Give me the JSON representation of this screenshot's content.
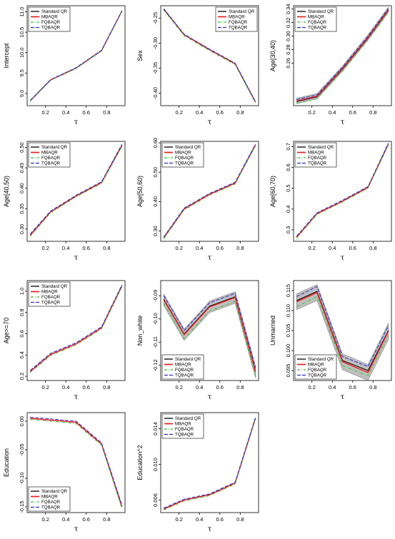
{
  "figure": {
    "colors": {
      "standard_qr": "#000000",
      "mbaqr": "#e8201f",
      "fqbaqr": "#35c035",
      "tqbaqr": "#2b2bd0",
      "band": "#aaaaaa"
    },
    "legend_labels": [
      "Standard QR",
      "MBAQR",
      "FQBAQR",
      "TQBAQR"
    ]
  },
  "chart_data": [
    {
      "type": "line",
      "ylabel": "Intercept",
      "xlabel": "τ",
      "x": [
        0.05,
        0.25,
        0.5,
        0.75,
        0.95
      ],
      "xticks": [
        "0.2",
        "0.4",
        "0.6",
        "0.8"
      ],
      "xlim": [
        0.02,
        0.98
      ],
      "yticks": [
        "9.0",
        "9.5",
        "10.0",
        "10.5",
        "11.0"
      ],
      "ylim": [
        8.7,
        11.15
      ],
      "legend": "top-left",
      "band": false,
      "series": [
        {
          "name": "Standard QR",
          "values": [
            8.82,
            9.33,
            9.62,
            10.05,
            11.02
          ]
        },
        {
          "name": "MBAQR",
          "values": [
            8.82,
            9.33,
            9.62,
            10.05,
            11.02
          ]
        },
        {
          "name": "FQBAQR",
          "values": [
            8.81,
            9.32,
            9.61,
            10.04,
            11.01
          ]
        },
        {
          "name": "TQBAQR",
          "values": [
            8.83,
            9.34,
            9.63,
            10.06,
            11.03
          ]
        }
      ]
    },
    {
      "type": "line",
      "ylabel": "Sex",
      "xlabel": "τ",
      "x": [
        0.05,
        0.25,
        0.5,
        0.75,
        0.95
      ],
      "xticks": [
        "0.2",
        "0.4",
        "0.6",
        "0.8"
      ],
      "xlim": [
        0.02,
        0.98
      ],
      "yticks": [
        "-0.25",
        "-0.30",
        "-0.35",
        "-0.40"
      ],
      "ylim": [
        -0.425,
        -0.225
      ],
      "legend": "top-right",
      "band": false,
      "series": [
        {
          "name": "Standard QR",
          "values": [
            -0.232,
            -0.283,
            -0.313,
            -0.341,
            -0.418
          ]
        },
        {
          "name": "MBAQR",
          "values": [
            -0.232,
            -0.283,
            -0.313,
            -0.341,
            -0.418
          ]
        },
        {
          "name": "FQBAQR",
          "values": [
            -0.234,
            -0.285,
            -0.315,
            -0.343,
            -0.42
          ]
        },
        {
          "name": "TQBAQR",
          "values": [
            -0.231,
            -0.282,
            -0.312,
            -0.34,
            -0.417
          ]
        }
      ]
    },
    {
      "type": "line",
      "ylabel": "Age[30,40)",
      "xlabel": "τ",
      "x": [
        0.05,
        0.25,
        0.5,
        0.75,
        0.95
      ],
      "xticks": [
        "0.2",
        "0.4",
        "0.6",
        "0.8"
      ],
      "xlim": [
        0.02,
        0.98
      ],
      "yticks": [
        "0.26",
        "0.28",
        "0.30",
        "0.32",
        "0.34"
      ],
      "ylim": [
        0.197,
        0.345
      ],
      "legend": "top-left",
      "band": true,
      "band_half_width": 0.004,
      "series": [
        {
          "name": "Standard QR",
          "values": [
            0.203,
            0.21,
            0.251,
            0.297,
            0.338
          ]
        },
        {
          "name": "MBAQR",
          "values": [
            0.204,
            0.211,
            0.252,
            0.298,
            0.339
          ]
        },
        {
          "name": "FQBAQR",
          "values": [
            0.2,
            0.207,
            0.248,
            0.294,
            0.335
          ]
        },
        {
          "name": "TQBAQR",
          "values": [
            0.206,
            0.213,
            0.254,
            0.3,
            0.341
          ]
        }
      ]
    },
    {
      "type": "line",
      "ylabel": "Age[40,50)",
      "xlabel": "τ",
      "x": [
        0.05,
        0.25,
        0.5,
        0.75,
        0.95
      ],
      "xticks": [
        "0.2",
        "0.4",
        "0.6",
        "0.8"
      ],
      "xlim": [
        0.02,
        0.98
      ],
      "yticks": [
        "0.30",
        "0.35",
        "0.40",
        "0.45",
        "0.50"
      ],
      "ylim": [
        0.27,
        0.515
      ],
      "legend": "top-left",
      "band": false,
      "series": [
        {
          "name": "Standard QR",
          "values": [
            0.285,
            0.342,
            0.381,
            0.414,
            0.505
          ]
        },
        {
          "name": "MBAQR",
          "values": [
            0.285,
            0.342,
            0.381,
            0.414,
            0.505
          ]
        },
        {
          "name": "FQBAQR",
          "values": [
            0.282,
            0.34,
            0.379,
            0.412,
            0.502
          ]
        },
        {
          "name": "TQBAQR",
          "values": [
            0.288,
            0.344,
            0.383,
            0.416,
            0.508
          ]
        }
      ]
    },
    {
      "type": "line",
      "ylabel": "Age[50,60)",
      "xlabel": "τ",
      "x": [
        0.05,
        0.25,
        0.5,
        0.75,
        0.95
      ],
      "xticks": [
        "0.2",
        "0.4",
        "0.6",
        "0.8"
      ],
      "xlim": [
        0.02,
        0.98
      ],
      "yticks": [
        "0.30",
        "0.40",
        "0.50",
        "0.60"
      ],
      "ylim": [
        0.265,
        0.605
      ],
      "legend": "top-left",
      "band": false,
      "series": [
        {
          "name": "Standard QR",
          "values": [
            0.277,
            0.375,
            0.425,
            0.463,
            0.593
          ]
        },
        {
          "name": "MBAQR",
          "values": [
            0.277,
            0.375,
            0.425,
            0.463,
            0.593
          ]
        },
        {
          "name": "FQBAQR",
          "values": [
            0.274,
            0.372,
            0.422,
            0.46,
            0.59
          ]
        },
        {
          "name": "TQBAQR",
          "values": [
            0.28,
            0.378,
            0.428,
            0.466,
            0.596
          ]
        }
      ]
    },
    {
      "type": "line",
      "ylabel": "Age[60,70)",
      "xlabel": "τ",
      "x": [
        0.05,
        0.25,
        0.5,
        0.75,
        0.95
      ],
      "xticks": [
        "0.2",
        "0.4",
        "0.6",
        "0.8"
      ],
      "xlim": [
        0.02,
        0.98
      ],
      "yticks": [
        "0.3",
        "0.4",
        "0.5",
        "0.6",
        "0.7"
      ],
      "ylim": [
        0.245,
        0.725
      ],
      "legend": "top-left",
      "band": false,
      "series": [
        {
          "name": "Standard QR",
          "values": [
            0.265,
            0.378,
            0.438,
            0.504,
            0.712
          ]
        },
        {
          "name": "MBAQR",
          "values": [
            0.265,
            0.378,
            0.438,
            0.504,
            0.712
          ]
        },
        {
          "name": "FQBAQR",
          "values": [
            0.26,
            0.374,
            0.434,
            0.5,
            0.707
          ]
        },
        {
          "name": "TQBAQR",
          "values": [
            0.27,
            0.382,
            0.442,
            0.508,
            0.717
          ]
        }
      ]
    },
    {
      "type": "line",
      "ylabel": "Age>=70",
      "xlabel": "τ",
      "x": [
        0.05,
        0.25,
        0.5,
        0.75,
        0.95
      ],
      "xticks": [
        "0.2",
        "0.4",
        "0.6",
        "0.8"
      ],
      "xlim": [
        0.02,
        0.98
      ],
      "yticks": [
        "0.2",
        "0.4",
        "0.6",
        "0.8",
        "1.0"
      ],
      "ylim": [
        0.16,
        1.1
      ],
      "legend": "top-left",
      "band": false,
      "series": [
        {
          "name": "Standard QR",
          "values": [
            0.245,
            0.405,
            0.505,
            0.655,
            1.05
          ]
        },
        {
          "name": "MBAQR",
          "values": [
            0.245,
            0.405,
            0.505,
            0.655,
            1.05
          ]
        },
        {
          "name": "FQBAQR",
          "values": [
            0.235,
            0.395,
            0.495,
            0.645,
            1.04
          ]
        },
        {
          "name": "TQBAQR",
          "values": [
            0.255,
            0.415,
            0.515,
            0.665,
            1.06
          ]
        }
      ]
    },
    {
      "type": "line",
      "ylabel": "Non_white",
      "xlabel": "τ",
      "x": [
        0.05,
        0.25,
        0.5,
        0.75,
        0.95
      ],
      "xticks": [
        "0.2",
        "0.4",
        "0.6",
        "0.8"
      ],
      "xlim": [
        0.02,
        0.98
      ],
      "yticks": [
        "-0.09",
        "-0.10",
        "-0.11",
        "-0.12"
      ],
      "ylim": [
        -0.1265,
        -0.0835
      ],
      "legend": "bottom-left",
      "band": true,
      "band_half_width": 0.0025,
      "series": [
        {
          "name": "Standard QR",
          "values": [
            -0.0915,
            -0.1065,
            -0.0945,
            -0.0905,
            -0.1225
          ]
        },
        {
          "name": "MBAQR",
          "values": [
            -0.0918,
            -0.1068,
            -0.0948,
            -0.0908,
            -0.1228
          ]
        },
        {
          "name": "FQBAQR",
          "values": [
            -0.0935,
            -0.1085,
            -0.0965,
            -0.0925,
            -0.1245
          ]
        },
        {
          "name": "TQBAQR",
          "values": [
            -0.09,
            -0.105,
            -0.093,
            -0.089,
            -0.121
          ]
        }
      ]
    },
    {
      "type": "line",
      "ylabel": "Unmarried",
      "xlabel": "τ",
      "x": [
        0.05,
        0.25,
        0.5,
        0.75,
        0.95
      ],
      "xticks": [
        "0.2",
        "0.4",
        "0.6",
        "0.8"
      ],
      "xlim": [
        0.02,
        0.98
      ],
      "yticks": [
        "0.095",
        "0.100",
        "0.105",
        "0.110",
        "0.115"
      ],
      "ylim": [
        0.0925,
        0.1175
      ],
      "legend": "bottom-left",
      "band": true,
      "band_half_width": 0.002,
      "series": [
        {
          "name": "Standard QR",
          "values": [
            0.1125,
            0.1148,
            0.0975,
            0.095,
            0.105
          ]
        },
        {
          "name": "MBAQR",
          "values": [
            0.1122,
            0.1145,
            0.0972,
            0.0945,
            0.1048
          ]
        },
        {
          "name": "FQBAQR",
          "values": [
            0.111,
            0.1135,
            0.0962,
            0.0937,
            0.1038
          ]
        },
        {
          "name": "TQBAQR",
          "values": [
            0.1135,
            0.116,
            0.0985,
            0.096,
            0.1062
          ]
        }
      ]
    },
    {
      "type": "line",
      "ylabel": "Education",
      "xlabel": "τ",
      "x": [
        0.05,
        0.25,
        0.5,
        0.75,
        0.95
      ],
      "xticks": [
        "0.2",
        "0.4",
        "0.6",
        "0.8"
      ],
      "xlim": [
        0.02,
        0.98
      ],
      "yticks": [
        "-0.15",
        "-0.10",
        "-0.05",
        "0.00"
      ],
      "ylim": [
        -0.16,
        0.015
      ],
      "legend": "bottom-left",
      "band": false,
      "series": [
        {
          "name": "Standard QR",
          "values": [
            0.005,
            0.002,
            -0.002,
            -0.04,
            -0.15
          ]
        },
        {
          "name": "MBAQR",
          "values": [
            0.005,
            0.002,
            -0.002,
            -0.04,
            -0.15
          ]
        },
        {
          "name": "FQBAQR",
          "values": [
            0.003,
            0.0,
            -0.004,
            -0.042,
            -0.153
          ]
        },
        {
          "name": "TQBAQR",
          "values": [
            0.007,
            0.004,
            0.0,
            -0.038,
            -0.147
          ]
        }
      ]
    },
    {
      "type": "line",
      "ylabel": "Education^2",
      "xlabel": "τ",
      "x": [
        0.05,
        0.25,
        0.5,
        0.75,
        0.95
      ],
      "xticks": [
        "0.2",
        "0.4",
        "0.6",
        "0.8"
      ],
      "xlim": [
        0.02,
        0.98
      ],
      "yticks": [
        "0.006",
        "0.010",
        "0.014"
      ],
      "ylim": [
        0.0046,
        0.0158
      ],
      "legend": "top-left",
      "band": false,
      "series": [
        {
          "name": "Standard QR",
          "values": [
            0.005,
            0.006,
            0.0066,
            0.0079,
            0.0152
          ]
        },
        {
          "name": "MBAQR",
          "values": [
            0.005,
            0.006,
            0.0066,
            0.0079,
            0.0152
          ]
        },
        {
          "name": "FQBAQR",
          "values": [
            0.0049,
            0.0059,
            0.0065,
            0.0078,
            0.0151
          ]
        },
        {
          "name": "TQBAQR",
          "values": [
            0.0051,
            0.0061,
            0.0067,
            0.008,
            0.0153
          ]
        }
      ]
    }
  ]
}
